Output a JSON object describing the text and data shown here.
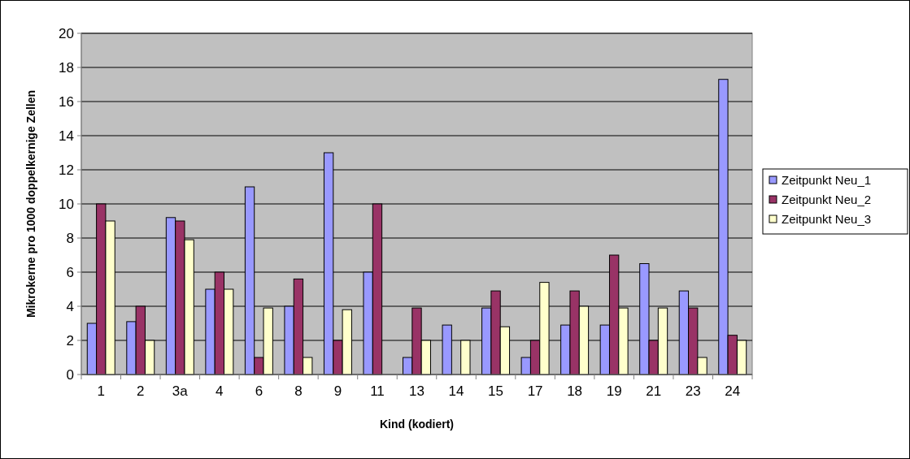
{
  "chart_data": {
    "type": "bar",
    "xlabel": "Kind (kodiert)",
    "ylabel": "Mikrokerne pro 1000 doppelkernige Zellen",
    "categories": [
      "1",
      "2",
      "3a",
      "4",
      "6",
      "8",
      "9",
      "11",
      "13",
      "14",
      "15",
      "17",
      "18",
      "19",
      "21",
      "23",
      "24"
    ],
    "series": [
      {
        "name": "Zeitpunkt Neu_1",
        "color": "#9999ff",
        "values": [
          3,
          3.1,
          9.2,
          5,
          11,
          4,
          13,
          6,
          1,
          2.9,
          3.9,
          1,
          2.9,
          2.9,
          6.5,
          4.9,
          17.3
        ]
      },
      {
        "name": "Zeitpunkt Neu_2",
        "color": "#993366",
        "values": [
          10,
          4,
          9,
          6,
          1,
          5.6,
          2,
          10,
          3.9,
          null,
          4.9,
          2,
          4.9,
          7,
          2,
          3.9,
          2.3
        ]
      },
      {
        "name": "Zeitpunkt Neu_3",
        "color": "#ffffcc",
        "values": [
          9,
          2,
          7.9,
          5,
          3.9,
          1,
          3.8,
          null,
          2,
          2,
          2.8,
          5.4,
          4,
          3.9,
          3.9,
          1,
          2
        ]
      }
    ],
    "ylim": [
      0,
      20
    ],
    "yticks": [
      0,
      2,
      4,
      6,
      8,
      10,
      12,
      14,
      16,
      18,
      20
    ],
    "grid": "y",
    "legend": "right"
  }
}
